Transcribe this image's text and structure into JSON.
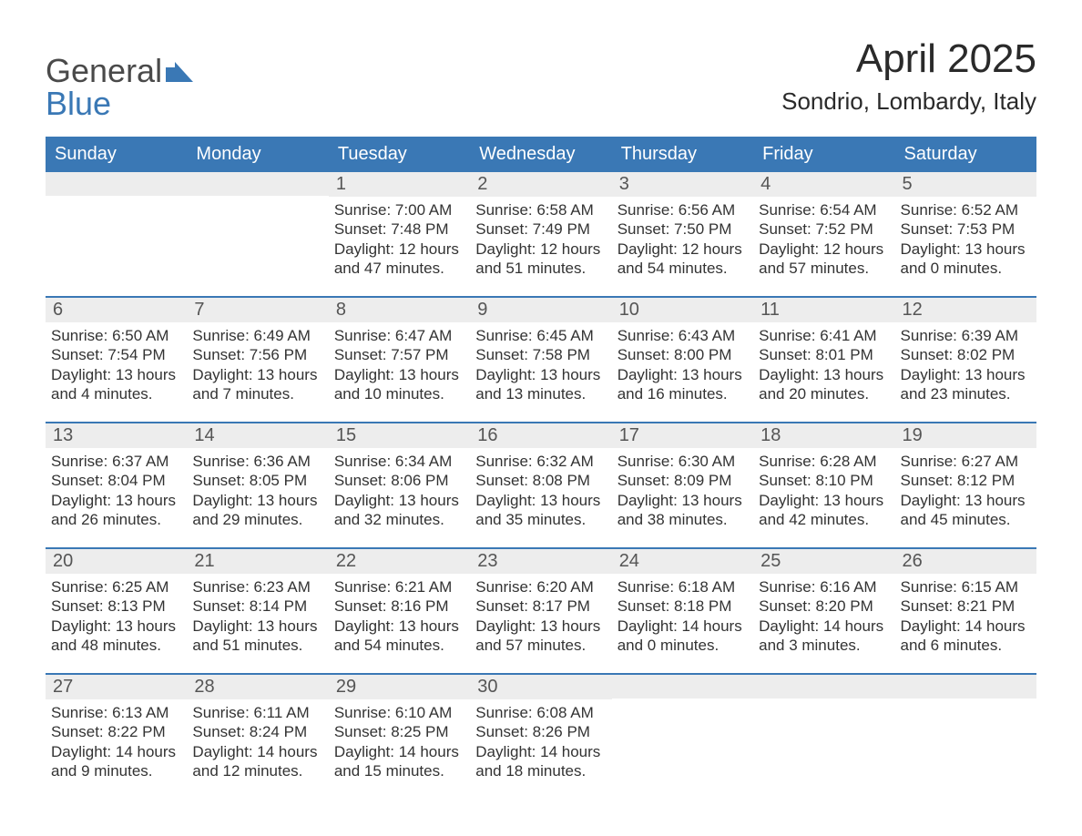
{
  "brand": {
    "word1": "General",
    "word2": "Blue",
    "color_general": "#4a4a4a",
    "color_blue": "#3a78b5",
    "icon_fill": "#3a78b5"
  },
  "title": "April 2025",
  "location": "Sondrio, Lombardy, Italy",
  "colors": {
    "header_bg": "#3a78b5",
    "header_text": "#ffffff",
    "daynum_bg": "#ededed",
    "daynum_text": "#555555",
    "body_text": "#333333",
    "row_rule": "#3a78b5",
    "page_bg": "#ffffff"
  },
  "day_headers": [
    "Sunday",
    "Monday",
    "Tuesday",
    "Wednesday",
    "Thursday",
    "Friday",
    "Saturday"
  ],
  "weeks": [
    [
      {
        "n": "",
        "sr": "",
        "ss": "",
        "dl": ""
      },
      {
        "n": "",
        "sr": "",
        "ss": "",
        "dl": ""
      },
      {
        "n": "1",
        "sr": "Sunrise: 7:00 AM",
        "ss": "Sunset: 7:48 PM",
        "dl": "Daylight: 12 hours and 47 minutes."
      },
      {
        "n": "2",
        "sr": "Sunrise: 6:58 AM",
        "ss": "Sunset: 7:49 PM",
        "dl": "Daylight: 12 hours and 51 minutes."
      },
      {
        "n": "3",
        "sr": "Sunrise: 6:56 AM",
        "ss": "Sunset: 7:50 PM",
        "dl": "Daylight: 12 hours and 54 minutes."
      },
      {
        "n": "4",
        "sr": "Sunrise: 6:54 AM",
        "ss": "Sunset: 7:52 PM",
        "dl": "Daylight: 12 hours and 57 minutes."
      },
      {
        "n": "5",
        "sr": "Sunrise: 6:52 AM",
        "ss": "Sunset: 7:53 PM",
        "dl": "Daylight: 13 hours and 0 minutes."
      }
    ],
    [
      {
        "n": "6",
        "sr": "Sunrise: 6:50 AM",
        "ss": "Sunset: 7:54 PM",
        "dl": "Daylight: 13 hours and 4 minutes."
      },
      {
        "n": "7",
        "sr": "Sunrise: 6:49 AM",
        "ss": "Sunset: 7:56 PM",
        "dl": "Daylight: 13 hours and 7 minutes."
      },
      {
        "n": "8",
        "sr": "Sunrise: 6:47 AM",
        "ss": "Sunset: 7:57 PM",
        "dl": "Daylight: 13 hours and 10 minutes."
      },
      {
        "n": "9",
        "sr": "Sunrise: 6:45 AM",
        "ss": "Sunset: 7:58 PM",
        "dl": "Daylight: 13 hours and 13 minutes."
      },
      {
        "n": "10",
        "sr": "Sunrise: 6:43 AM",
        "ss": "Sunset: 8:00 PM",
        "dl": "Daylight: 13 hours and 16 minutes."
      },
      {
        "n": "11",
        "sr": "Sunrise: 6:41 AM",
        "ss": "Sunset: 8:01 PM",
        "dl": "Daylight: 13 hours and 20 minutes."
      },
      {
        "n": "12",
        "sr": "Sunrise: 6:39 AM",
        "ss": "Sunset: 8:02 PM",
        "dl": "Daylight: 13 hours and 23 minutes."
      }
    ],
    [
      {
        "n": "13",
        "sr": "Sunrise: 6:37 AM",
        "ss": "Sunset: 8:04 PM",
        "dl": "Daylight: 13 hours and 26 minutes."
      },
      {
        "n": "14",
        "sr": "Sunrise: 6:36 AM",
        "ss": "Sunset: 8:05 PM",
        "dl": "Daylight: 13 hours and 29 minutes."
      },
      {
        "n": "15",
        "sr": "Sunrise: 6:34 AM",
        "ss": "Sunset: 8:06 PM",
        "dl": "Daylight: 13 hours and 32 minutes."
      },
      {
        "n": "16",
        "sr": "Sunrise: 6:32 AM",
        "ss": "Sunset: 8:08 PM",
        "dl": "Daylight: 13 hours and 35 minutes."
      },
      {
        "n": "17",
        "sr": "Sunrise: 6:30 AM",
        "ss": "Sunset: 8:09 PM",
        "dl": "Daylight: 13 hours and 38 minutes."
      },
      {
        "n": "18",
        "sr": "Sunrise: 6:28 AM",
        "ss": "Sunset: 8:10 PM",
        "dl": "Daylight: 13 hours and 42 minutes."
      },
      {
        "n": "19",
        "sr": "Sunrise: 6:27 AM",
        "ss": "Sunset: 8:12 PM",
        "dl": "Daylight: 13 hours and 45 minutes."
      }
    ],
    [
      {
        "n": "20",
        "sr": "Sunrise: 6:25 AM",
        "ss": "Sunset: 8:13 PM",
        "dl": "Daylight: 13 hours and 48 minutes."
      },
      {
        "n": "21",
        "sr": "Sunrise: 6:23 AM",
        "ss": "Sunset: 8:14 PM",
        "dl": "Daylight: 13 hours and 51 minutes."
      },
      {
        "n": "22",
        "sr": "Sunrise: 6:21 AM",
        "ss": "Sunset: 8:16 PM",
        "dl": "Daylight: 13 hours and 54 minutes."
      },
      {
        "n": "23",
        "sr": "Sunrise: 6:20 AM",
        "ss": "Sunset: 8:17 PM",
        "dl": "Daylight: 13 hours and 57 minutes."
      },
      {
        "n": "24",
        "sr": "Sunrise: 6:18 AM",
        "ss": "Sunset: 8:18 PM",
        "dl": "Daylight: 14 hours and 0 minutes."
      },
      {
        "n": "25",
        "sr": "Sunrise: 6:16 AM",
        "ss": "Sunset: 8:20 PM",
        "dl": "Daylight: 14 hours and 3 minutes."
      },
      {
        "n": "26",
        "sr": "Sunrise: 6:15 AM",
        "ss": "Sunset: 8:21 PM",
        "dl": "Daylight: 14 hours and 6 minutes."
      }
    ],
    [
      {
        "n": "27",
        "sr": "Sunrise: 6:13 AM",
        "ss": "Sunset: 8:22 PM",
        "dl": "Daylight: 14 hours and 9 minutes."
      },
      {
        "n": "28",
        "sr": "Sunrise: 6:11 AM",
        "ss": "Sunset: 8:24 PM",
        "dl": "Daylight: 14 hours and 12 minutes."
      },
      {
        "n": "29",
        "sr": "Sunrise: 6:10 AM",
        "ss": "Sunset: 8:25 PM",
        "dl": "Daylight: 14 hours and 15 minutes."
      },
      {
        "n": "30",
        "sr": "Sunrise: 6:08 AM",
        "ss": "Sunset: 8:26 PM",
        "dl": "Daylight: 14 hours and 18 minutes."
      },
      {
        "n": "",
        "sr": "",
        "ss": "",
        "dl": ""
      },
      {
        "n": "",
        "sr": "",
        "ss": "",
        "dl": ""
      },
      {
        "n": "",
        "sr": "",
        "ss": "",
        "dl": ""
      }
    ]
  ]
}
